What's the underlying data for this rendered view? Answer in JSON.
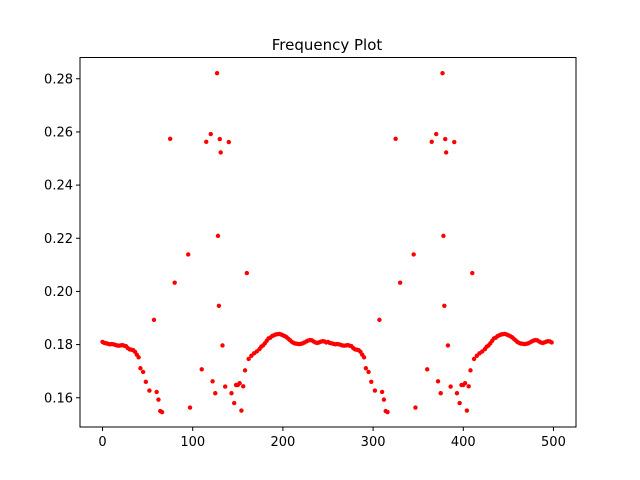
{
  "chart_data": {
    "type": "scatter",
    "title": "Frequency Plot",
    "xlabel": "",
    "ylabel": "",
    "xlim": [
      -25,
      525
    ],
    "ylim": [
      0.149,
      0.288
    ],
    "xticks": [
      0,
      100,
      200,
      300,
      400,
      500
    ],
    "yticks": [
      0.16,
      0.18,
      0.2,
      0.22,
      0.24,
      0.26,
      0.28
    ],
    "ytick_labels": [
      "0.16",
      "0.18",
      "0.20",
      "0.22",
      "0.24",
      "0.26",
      "0.28"
    ],
    "marker_color": "#ff0000",
    "grid": false,
    "period": 250,
    "series": [
      {
        "x": [
          0,
          2,
          4,
          6,
          8,
          10,
          12,
          14,
          16,
          18,
          20,
          22,
          24,
          26,
          28,
          30,
          32,
          34,
          36,
          38,
          40,
          42,
          45,
          48,
          52,
          57,
          60,
          62,
          64,
          66,
          75,
          80,
          95,
          97,
          110,
          115,
          120,
          122,
          125,
          127,
          128,
          129,
          130,
          131,
          133,
          136,
          140,
          143,
          146,
          148,
          150,
          152,
          154,
          156,
          158,
          160,
          162,
          165,
          168,
          171,
          174,
          176,
          178,
          180,
          182,
          184,
          186,
          188,
          190,
          192,
          194,
          196,
          198,
          200,
          202,
          204,
          206,
          208,
          210,
          212,
          214,
          216,
          218,
          220,
          222,
          224,
          226,
          228,
          230,
          232,
          234,
          236,
          238,
          240,
          242,
          244,
          246,
          248
        ],
        "y": [
          0.181,
          0.1806,
          0.1805,
          0.1803,
          0.1801,
          0.1802,
          0.1801,
          0.1799,
          0.1797,
          0.1796,
          0.1797,
          0.1798,
          0.1796,
          0.1794,
          0.1787,
          0.1782,
          0.1781,
          0.1779,
          0.1773,
          0.1762,
          0.1752,
          0.1711,
          0.1697,
          0.166,
          0.1627,
          0.1893,
          0.1622,
          0.1593,
          0.155,
          0.1546,
          0.2574,
          0.2033,
          0.2139,
          0.1563,
          0.1707,
          0.2563,
          0.2592,
          0.1662,
          0.1617,
          0.2821,
          0.2209,
          0.1946,
          0.2573,
          0.2523,
          0.1797,
          0.1642,
          0.2562,
          0.1617,
          0.158,
          0.1648,
          0.1648,
          0.1655,
          0.1552,
          0.1643,
          0.1703,
          0.2069,
          0.1746,
          0.1758,
          0.1767,
          0.1774,
          0.1783,
          0.1792,
          0.1797,
          0.1805,
          0.1814,
          0.1823,
          0.1826,
          0.1832,
          0.1835,
          0.1838,
          0.1839,
          0.184,
          0.1838,
          0.1835,
          0.1832,
          0.1828,
          0.1822,
          0.1816,
          0.181,
          0.1806,
          0.1804,
          0.1803,
          0.1802,
          0.1803,
          0.1805,
          0.1808,
          0.1812,
          0.1815,
          0.1817,
          0.1816,
          0.1812,
          0.1808,
          0.1806,
          0.1808,
          0.1811,
          0.1813,
          0.1812,
          0.1808
        ]
      }
    ]
  }
}
